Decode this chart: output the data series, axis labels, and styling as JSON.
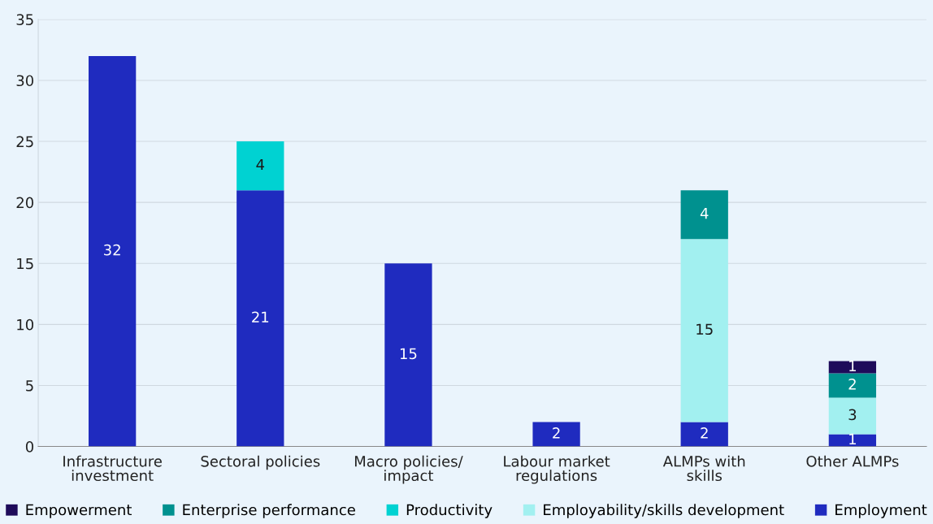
{
  "chart_data": {
    "type": "bar",
    "stacked": true,
    "data_labels": true,
    "grid": "y",
    "legend": "bottom",
    "categories": [
      "Infrastructure\ninvestment",
      "Sectoral policies",
      "Macro policies/\nimpact",
      "Labour market\nregulations",
      "ALMPs with\nskills",
      "Other ALMPs"
    ],
    "ylim": [
      0,
      35
    ],
    "yticks": [
      0,
      5,
      10,
      15,
      20,
      25,
      30,
      35
    ],
    "series": [
      {
        "name": "Employment",
        "color": "#1f2bbf",
        "values": [
          32,
          21,
          15,
          2,
          2,
          1
        ]
      },
      {
        "name": "Employability/skills development",
        "color": "#a2f0f0",
        "values": [
          null,
          null,
          null,
          null,
          15,
          3
        ]
      },
      {
        "name": "Productivity",
        "color": "#00d2d2",
        "values": [
          null,
          4,
          null,
          null,
          null,
          null
        ]
      },
      {
        "name": "Enterprise performance",
        "color": "#00918f",
        "values": [
          null,
          null,
          null,
          null,
          4,
          2
        ]
      },
      {
        "name": "Empowerment",
        "color": "#1e0b5a",
        "values": [
          null,
          null,
          null,
          null,
          null,
          1
        ]
      }
    ]
  }
}
